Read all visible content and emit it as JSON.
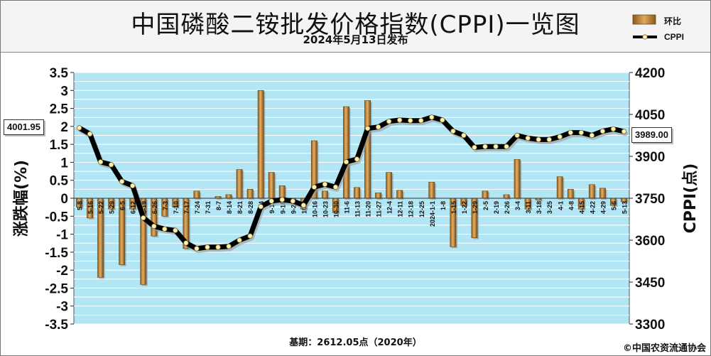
{
  "header": {
    "title": "中国磷酸二铵批发价格指数(CPPI)一览图",
    "subtitle": "2024年5月13日发布"
  },
  "legend": {
    "bar_label": "环比",
    "line_label": "CPPI"
  },
  "callouts": {
    "first_value": "4001.95",
    "last_value": "3989.00"
  },
  "footer": {
    "base_note": "基期：2612.05点（2020年）",
    "copyright": "©中国农资流通协会"
  },
  "colors": {
    "plot_background": "#b3e6f5",
    "gridline": "#ffffff",
    "bar": "#c98a3a",
    "line": "#000000",
    "marker_fill": "#fff2b0"
  },
  "chart_data": {
    "type": "bar",
    "title": "中国磷酸二铵批发价格指数(CPPI)一览图",
    "subtitle": "2024年5月13日发布",
    "ylabel_left": "涨跌幅(%)",
    "ylabel_right": "CPPI(点)",
    "ylim_left": [
      -3.5,
      3.5
    ],
    "ylim_right": [
      3300,
      4200
    ],
    "yticks_left": [
      "3.5",
      "3",
      "2.5",
      "2",
      "1.5",
      "1",
      "0.5",
      "0",
      "-0.5",
      "-1",
      "-1.5",
      "-2",
      "-2.5",
      "-3",
      "-3.5"
    ],
    "yticks_right": [
      "4200",
      "4050",
      "3900",
      "3750",
      "3600",
      "3450",
      "3300"
    ],
    "grid": true,
    "legend_position": "top-right",
    "categories": [
      "5-8",
      "5-16",
      "5-22",
      "5-29",
      "6-5",
      "6-12",
      "6-19",
      "6-26",
      "7-3",
      "7-10",
      "7-17",
      "7-24",
      "7-31",
      "8-7",
      "8-14",
      "8-21",
      "8-28",
      "9-4",
      "9-11",
      "9-18",
      "9-25",
      "10-9",
      "10-16",
      "10-23",
      "10-30",
      "11-6",
      "11-13",
      "11-20",
      "11-27",
      "12-4",
      "12-11",
      "12-18",
      "12-25",
      "2024-1-1",
      "1-8",
      "1-15",
      "1-22",
      "1-29",
      "2-5",
      "2-19",
      "2-26",
      "3-4",
      "3-11",
      "3-18",
      "3-25",
      "4-1",
      "4-8",
      "4-15",
      "4-22",
      "4-29",
      "5-6",
      "5-13"
    ],
    "series": [
      {
        "name": "环比",
        "type": "bar",
        "values": [
          -0.25,
          -0.55,
          -2.2,
          -0.3,
          -1.85,
          -0.3,
          -2.4,
          -1.05,
          -0.5,
          -0.25,
          -1.4,
          0.2,
          0.0,
          0.05,
          0.1,
          0.8,
          0.25,
          3.0,
          0.72,
          0.35,
          -0.1,
          -0.3,
          1.6,
          0.2,
          -0.4,
          2.55,
          0.3,
          2.72,
          0.15,
          0.72,
          0.22,
          0.0,
          0.0,
          0.45,
          0.0,
          -1.35,
          -0.2,
          -1.1,
          0.2,
          0.0,
          0.1,
          1.08,
          -0.3,
          -0.05,
          0.0,
          0.6,
          0.25,
          -0.3,
          0.38,
          0.28,
          -0.2,
          -0.1
        ]
      },
      {
        "name": "CPPI",
        "type": "line",
        "values": [
          4001.95,
          3980,
          3880,
          3870,
          3810,
          3795,
          3680,
          3650,
          3640,
          3635,
          3590,
          3570,
          3575,
          3575,
          3578,
          3600,
          3615,
          3720,
          3740,
          3745,
          3740,
          3725,
          3790,
          3800,
          3790,
          3880,
          3890,
          4000,
          4005,
          4025,
          4030,
          4028,
          4028,
          4040,
          4030,
          3990,
          3975,
          3932,
          3935,
          3935,
          3935,
          3975,
          3965,
          3960,
          3960,
          3970,
          3985,
          3985,
          3975,
          3990,
          3998,
          3989.0
        ]
      }
    ]
  }
}
